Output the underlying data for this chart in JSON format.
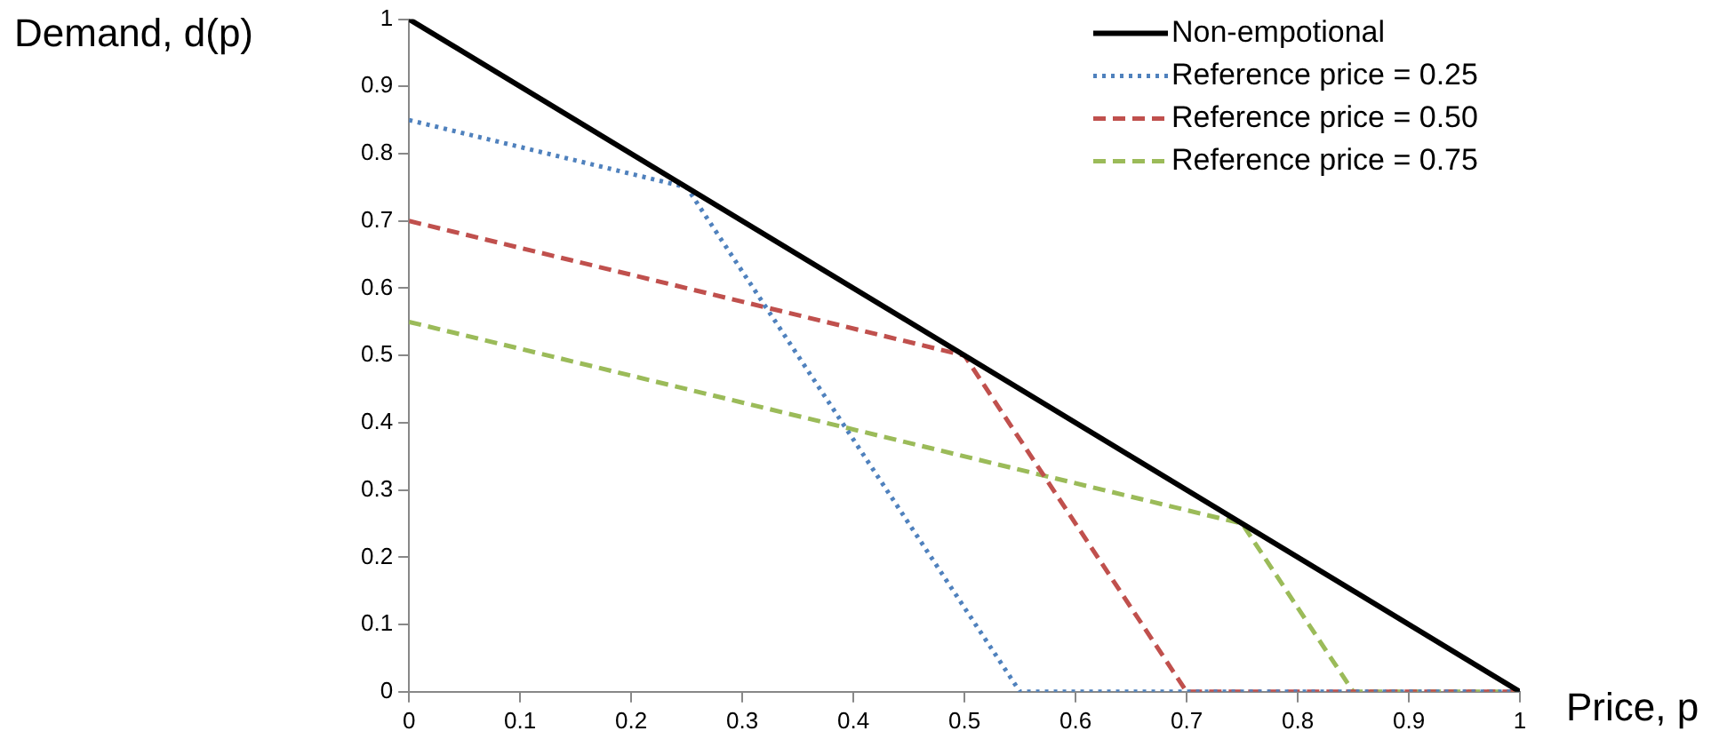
{
  "chart_data": {
    "type": "line",
    "xlabel": "Price, p",
    "ylabel": "Demand, d(p)",
    "xlim": [
      0,
      1
    ],
    "ylim": [
      0,
      1
    ],
    "xticks": [
      0,
      0.1,
      0.2,
      0.3,
      0.4,
      0.5,
      0.6,
      0.7,
      0.8,
      0.9,
      1
    ],
    "yticks": [
      0,
      0.1,
      0.2,
      0.3,
      0.4,
      0.5,
      0.6,
      0.7,
      0.8,
      0.9,
      1
    ],
    "grid": false,
    "legend": "top right",
    "marker": "none",
    "series": [
      {
        "name": "Non-empotional",
        "color": "#000000",
        "line_style": "solid",
        "x": [
          0,
          1
        ],
        "values": [
          1,
          0
        ]
      },
      {
        "name": "Reference price = 0.25",
        "color": "#4f81bd",
        "line_style": "dotted",
        "x": [
          0,
          0.25,
          0.55,
          1
        ],
        "values": [
          0.85,
          0.75,
          0,
          0
        ]
      },
      {
        "name": "Reference price = 0.50",
        "color": "#c0504d",
        "line_style": "dashed",
        "x": [
          0,
          0.5,
          0.7,
          1
        ],
        "values": [
          0.7,
          0.5,
          0,
          0
        ]
      },
      {
        "name": "Reference price = 0.75",
        "color": "#9bbb59",
        "line_style": "dashed",
        "x": [
          0,
          0.75,
          0.85,
          1
        ],
        "values": [
          0.55,
          0.25,
          0,
          0
        ]
      }
    ]
  }
}
